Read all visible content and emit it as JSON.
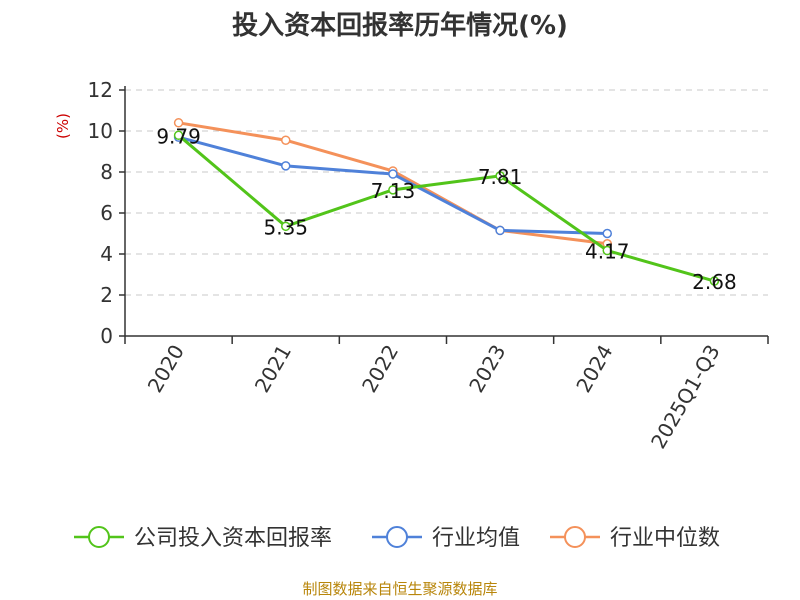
{
  "chart_data": {
    "type": "line",
    "title": "投入资本回报率历年情况(%)",
    "ylabel": "(%)",
    "xlabel": "",
    "ylim": [
      0,
      12
    ],
    "yticks": [
      "0",
      "2",
      "4",
      "6",
      "8",
      "10",
      "12"
    ],
    "grid": true,
    "categories": [
      "2020",
      "2021",
      "2022",
      "2023",
      "2024",
      "2025Q1-Q3"
    ],
    "series": [
      {
        "name": "公司投入资本回报率",
        "color": "#52c41a",
        "values": [
          9.79,
          5.35,
          7.13,
          7.81,
          4.17,
          2.68
        ],
        "labels": [
          "9.79",
          "5.35",
          "7.13",
          "7.81",
          "4.17",
          "2.68"
        ]
      },
      {
        "name": "行业均值",
        "color": "#4f81d9",
        "values": [
          9.7,
          8.3,
          7.9,
          5.15,
          5.0,
          null
        ]
      },
      {
        "name": "行业中位数",
        "color": "#f4915a",
        "values": [
          10.4,
          9.55,
          8.05,
          5.15,
          4.5,
          null
        ]
      }
    ],
    "legend_position": "bottom"
  },
  "source": "制图数据来自恒生聚源数据库"
}
